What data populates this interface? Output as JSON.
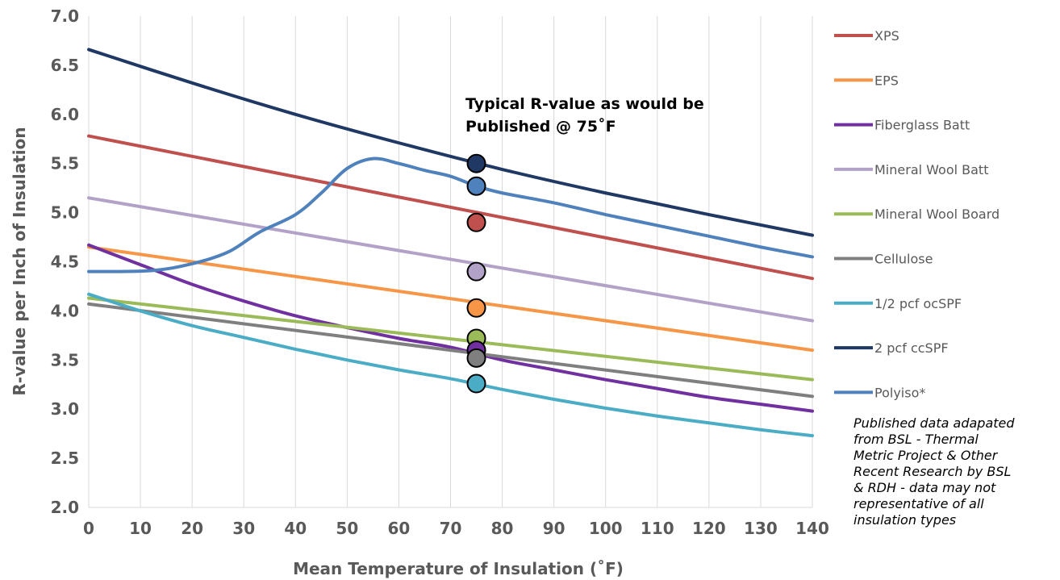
{
  "chart_data": {
    "type": "line",
    "xlabel": "Mean Temperature  of Insulation (˚F)",
    "ylabel": "R-value per Inch of Insulation",
    "xlim": [
      0,
      140
    ],
    "ylim": [
      2.0,
      7.0
    ],
    "x_ticks": [
      0,
      10,
      20,
      30,
      40,
      50,
      60,
      70,
      80,
      90,
      100,
      110,
      120,
      130,
      140
    ],
    "y_ticks": [
      "2.0",
      "2.5",
      "3.0",
      "3.5",
      "4.0",
      "4.5",
      "5.0",
      "5.5",
      "6.0",
      "6.5",
      "7.0"
    ],
    "grid": "vertical",
    "legend_position": "right",
    "annotation": [
      "Typical R-value as would be",
      "Published @ 75˚F"
    ],
    "marker_x": 75,
    "series": [
      {
        "name": "XPS",
        "color": "#c0504d",
        "marker": 4.9,
        "points": [
          [
            0,
            5.78
          ],
          [
            140,
            4.33
          ]
        ]
      },
      {
        "name": "EPS",
        "color": "#f79646",
        "marker": 4.03,
        "points": [
          [
            0,
            4.65
          ],
          [
            140,
            3.6
          ]
        ]
      },
      {
        "name": "Fiberglass Batt",
        "color": "#7030a0",
        "marker": 3.6,
        "points": [
          [
            0,
            4.67
          ],
          [
            10,
            4.47
          ],
          [
            20,
            4.27
          ],
          [
            30,
            4.1
          ],
          [
            40,
            3.95
          ],
          [
            50,
            3.83
          ],
          [
            60,
            3.72
          ],
          [
            70,
            3.63
          ],
          [
            80,
            3.5
          ],
          [
            90,
            3.4
          ],
          [
            100,
            3.3
          ],
          [
            110,
            3.21
          ],
          [
            120,
            3.12
          ],
          [
            130,
            3.05
          ],
          [
            140,
            2.98
          ]
        ]
      },
      {
        "name": "Mineral Wool Batt",
        "color": "#b3a2c7",
        "marker": 4.4,
        "points": [
          [
            0,
            5.15
          ],
          [
            140,
            3.9
          ]
        ]
      },
      {
        "name": "Mineral Wool Board",
        "color": "#9bbb59",
        "marker": 3.72,
        "points": [
          [
            0,
            4.13
          ],
          [
            140,
            3.3
          ]
        ]
      },
      {
        "name": "Cellulose",
        "color": "#7f7f7f",
        "marker": 3.52,
        "points": [
          [
            0,
            4.07
          ],
          [
            140,
            3.13
          ]
        ]
      },
      {
        "name": "1/2 pcf ocSPF",
        "color": "#4bacc6",
        "marker": 3.26,
        "points": [
          [
            0,
            4.17
          ],
          [
            10,
            4.0
          ],
          [
            20,
            3.85
          ],
          [
            30,
            3.73
          ],
          [
            40,
            3.61
          ],
          [
            50,
            3.5
          ],
          [
            60,
            3.4
          ],
          [
            70,
            3.31
          ],
          [
            80,
            3.2
          ],
          [
            90,
            3.1
          ],
          [
            100,
            3.01
          ],
          [
            110,
            2.93
          ],
          [
            120,
            2.86
          ],
          [
            130,
            2.79
          ],
          [
            140,
            2.73
          ]
        ]
      },
      {
        "name": "2 pcf ccSPF",
        "color": "#1f3864",
        "marker": 5.5,
        "points": [
          [
            0,
            6.66
          ],
          [
            20,
            6.32
          ],
          [
            40,
            6.0
          ],
          [
            60,
            5.71
          ],
          [
            80,
            5.44
          ],
          [
            100,
            5.2
          ],
          [
            120,
            4.98
          ],
          [
            140,
            4.77
          ]
        ]
      },
      {
        "name": "Polyiso*",
        "color": "#4f81bd",
        "marker": 5.27,
        "points": [
          [
            0,
            4.4
          ],
          [
            12,
            4.41
          ],
          [
            20,
            4.48
          ],
          [
            27,
            4.6
          ],
          [
            33,
            4.8
          ],
          [
            40,
            4.98
          ],
          [
            45,
            5.2
          ],
          [
            50,
            5.45
          ],
          [
            55,
            5.55
          ],
          [
            60,
            5.5
          ],
          [
            65,
            5.43
          ],
          [
            70,
            5.37
          ],
          [
            75,
            5.27
          ],
          [
            80,
            5.2
          ],
          [
            90,
            5.1
          ],
          [
            100,
            4.98
          ],
          [
            110,
            4.87
          ],
          [
            120,
            4.76
          ],
          [
            130,
            4.65
          ],
          [
            140,
            4.55
          ]
        ]
      }
    ],
    "note": [
      "Published data adapated",
      "from BSL - Thermal",
      "Metric Project & Other",
      "Recent Research by BSL",
      "& RDH - data may not",
      "representative of all",
      "insulation types"
    ]
  }
}
